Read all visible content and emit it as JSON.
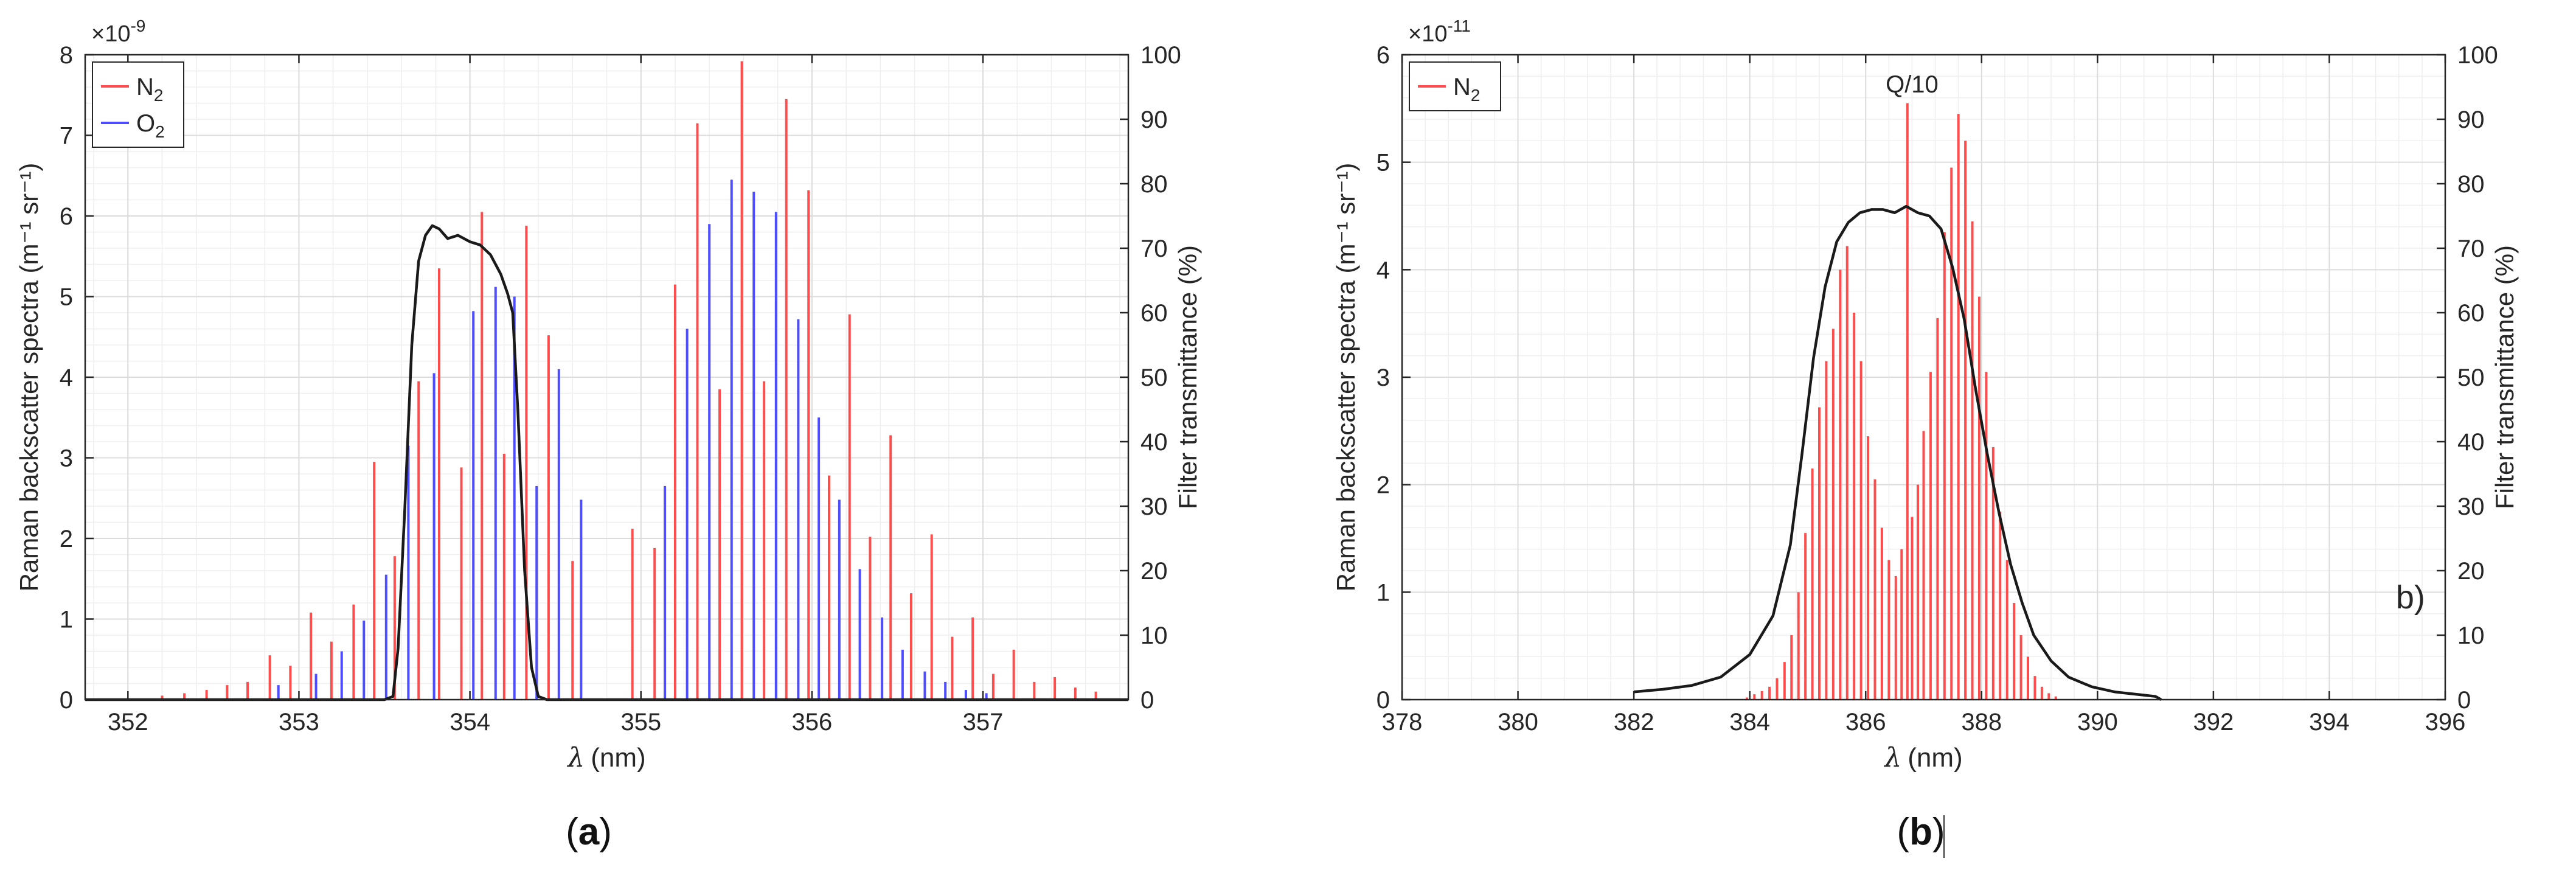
{
  "charts": [
    {
      "panel_caption_prefix": "(",
      "panel_caption_letter": "a",
      "panel_caption_suffix": ")",
      "xlabel_symbol": "λ",
      "xlabel_unit": "(nm)",
      "ylabel": "Raman backscatter spectra (m⁻¹ sr⁻¹)",
      "y2label": "Filter transmittance (%)",
      "exponent_base": "×10",
      "exponent_power": "-9",
      "legend_items": [
        {
          "label_main": "N",
          "label_sub": "2",
          "color": "#ff4d4d"
        },
        {
          "label_main": "O",
          "label_sub": "2",
          "color": "#4d4dff"
        }
      ],
      "xticks": [
        "352",
        "353",
        "354",
        "355",
        "356",
        "357"
      ],
      "yticks": [
        "0",
        "1",
        "2",
        "3",
        "4",
        "5",
        "6",
        "7",
        "8"
      ],
      "y2ticks": [
        "0",
        "10",
        "20",
        "30",
        "40",
        "50",
        "60",
        "70",
        "80",
        "90",
        "100"
      ],
      "annotations": []
    },
    {
      "panel_caption_prefix": "(",
      "panel_caption_letter": "b",
      "panel_caption_suffix": ")",
      "xlabel_symbol": "λ",
      "xlabel_unit": "(nm)",
      "ylabel": "Raman backscatter spectra (m⁻¹ sr⁻¹)",
      "y2label": "Filter transmittance (%)",
      "exponent_base": "×10",
      "exponent_power": "-11",
      "legend_items": [
        {
          "label_main": "N",
          "label_sub": "2",
          "color": "#ff4d4d"
        }
      ],
      "xticks": [
        "378",
        "380",
        "382",
        "384",
        "386",
        "388",
        "390",
        "392",
        "394",
        "396"
      ],
      "yticks": [
        "0",
        "1",
        "2",
        "3",
        "4",
        "5",
        "6"
      ],
      "y2ticks": [
        "0",
        "10",
        "20",
        "30",
        "40",
        "50",
        "60",
        "70",
        "80",
        "90",
        "100"
      ],
      "annotations": [
        {
          "text": "Q/10",
          "x": 386.8,
          "y": 5.65
        },
        {
          "text": "b)",
          "x": 395.4,
          "y": 0.85
        }
      ]
    }
  ],
  "chart_data": [
    {
      "type": "bar",
      "xlim": [
        351.75,
        357.85
      ],
      "ylim": [
        0,
        8
      ],
      "y_scale": 1e-09,
      "y2lim": [
        0,
        100
      ],
      "grid": true,
      "legend_position": "top-left",
      "series": [
        {
          "name": "N2",
          "color": "#ff4d4d",
          "kind": "stems",
          "points": [
            [
              352.2,
              0.05
            ],
            [
              352.33,
              0.08
            ],
            [
              352.46,
              0.12
            ],
            [
              352.58,
              0.18
            ],
            [
              352.7,
              0.22
            ],
            [
              352.83,
              0.55
            ],
            [
              352.95,
              0.42
            ],
            [
              353.07,
              1.08
            ],
            [
              353.19,
              0.72
            ],
            [
              353.32,
              1.18
            ],
            [
              353.44,
              2.95
            ],
            [
              353.56,
              1.78
            ],
            [
              353.7,
              3.95
            ],
            [
              353.82,
              5.35
            ],
            [
              353.95,
              2.88
            ],
            [
              354.07,
              6.05
            ],
            [
              354.2,
              3.05
            ],
            [
              354.33,
              5.88
            ],
            [
              354.46,
              4.52
            ],
            [
              354.6,
              1.72
            ],
            [
              354.95,
              2.12
            ],
            [
              355.08,
              1.88
            ],
            [
              355.2,
              5.15
            ],
            [
              355.33,
              7.15
            ],
            [
              355.46,
              3.85
            ],
            [
              355.59,
              7.92
            ],
            [
              355.72,
              3.95
            ],
            [
              355.85,
              7.45
            ],
            [
              355.98,
              6.32
            ],
            [
              356.1,
              2.78
            ],
            [
              356.22,
              4.78
            ],
            [
              356.34,
              2.02
            ],
            [
              356.46,
              3.28
            ],
            [
              356.58,
              1.32
            ],
            [
              356.7,
              2.05
            ],
            [
              356.82,
              0.78
            ],
            [
              356.94,
              1.02
            ],
            [
              357.06,
              0.32
            ],
            [
              357.18,
              0.62
            ],
            [
              357.3,
              0.22
            ],
            [
              357.42,
              0.28
            ],
            [
              357.54,
              0.15
            ],
            [
              357.66,
              0.1
            ]
          ]
        },
        {
          "name": "O2",
          "color": "#4d4dff",
          "kind": "stems",
          "points": [
            [
              352.88,
              0.18
            ],
            [
              353.1,
              0.32
            ],
            [
              353.25,
              0.6
            ],
            [
              353.38,
              0.98
            ],
            [
              353.51,
              1.55
            ],
            [
              353.64,
              3.15
            ],
            [
              353.79,
              4.05
            ],
            [
              354.02,
              4.82
            ],
            [
              354.15,
              5.12
            ],
            [
              354.26,
              5.0
            ],
            [
              354.39,
              2.65
            ],
            [
              354.52,
              4.1
            ],
            [
              354.65,
              2.48
            ],
            [
              355.14,
              2.65
            ],
            [
              355.27,
              4.6
            ],
            [
              355.4,
              5.9
            ],
            [
              355.53,
              6.45
            ],
            [
              355.66,
              6.3
            ],
            [
              355.79,
              6.05
            ],
            [
              355.92,
              4.72
            ],
            [
              356.04,
              3.5
            ],
            [
              356.16,
              2.48
            ],
            [
              356.28,
              1.62
            ],
            [
              356.41,
              1.02
            ],
            [
              356.53,
              0.62
            ],
            [
              356.66,
              0.35
            ],
            [
              356.78,
              0.22
            ],
            [
              356.9,
              0.12
            ],
            [
              357.02,
              0.08
            ]
          ]
        },
        {
          "name": "",
          "color": "#1a1a1a",
          "kind": "line",
          "axis": "y2",
          "points": [
            [
              351.75,
              0
            ],
            [
              353.5,
              0
            ],
            [
              353.55,
              0.5
            ],
            [
              353.58,
              8
            ],
            [
              353.62,
              30
            ],
            [
              353.66,
              55
            ],
            [
              353.7,
              68
            ],
            [
              353.74,
              72
            ],
            [
              353.78,
              73.5
            ],
            [
              353.82,
              73
            ],
            [
              353.87,
              71.5
            ],
            [
              353.93,
              72
            ],
            [
              354.0,
              71
            ],
            [
              354.06,
              70.5
            ],
            [
              354.12,
              69
            ],
            [
              354.18,
              66
            ],
            [
              354.22,
              63
            ],
            [
              354.25,
              60
            ],
            [
              354.28,
              45
            ],
            [
              354.32,
              20
            ],
            [
              354.36,
              5
            ],
            [
              354.4,
              0.5
            ],
            [
              354.45,
              0
            ],
            [
              357.85,
              0
            ]
          ]
        }
      ]
    },
    {
      "type": "bar",
      "xlim": [
        378,
        396
      ],
      "ylim": [
        0,
        6
      ],
      "y_scale": 1e-11,
      "y2lim": [
        0,
        100
      ],
      "grid": true,
      "legend_position": "top-left",
      "series": [
        {
          "name": "N2",
          "color": "#ff4d4d",
          "kind": "stems",
          "points": [
            [
              383.95,
              0.02
            ],
            [
              384.08,
              0.05
            ],
            [
              384.21,
              0.08
            ],
            [
              384.34,
              0.12
            ],
            [
              384.47,
              0.2
            ],
            [
              384.6,
              0.35
            ],
            [
              384.72,
              0.6
            ],
            [
              384.84,
              1.0
            ],
            [
              384.96,
              1.55
            ],
            [
              385.08,
              2.15
            ],
            [
              385.2,
              2.72
            ],
            [
              385.32,
              3.15
            ],
            [
              385.44,
              3.45
            ],
            [
              385.56,
              4.0
            ],
            [
              385.68,
              4.22
            ],
            [
              385.8,
              3.6
            ],
            [
              385.92,
              3.15
            ],
            [
              386.04,
              2.45
            ],
            [
              386.16,
              2.05
            ],
            [
              386.28,
              1.6
            ],
            [
              386.4,
              1.3
            ],
            [
              386.52,
              1.15
            ],
            [
              386.62,
              1.4
            ],
            [
              386.72,
              5.55
            ],
            [
              386.8,
              1.7
            ],
            [
              386.9,
              2.0
            ],
            [
              387.0,
              2.5
            ],
            [
              387.12,
              3.05
            ],
            [
              387.24,
              3.55
            ],
            [
              387.36,
              4.35
            ],
            [
              387.48,
              4.95
            ],
            [
              387.6,
              5.45
            ],
            [
              387.72,
              5.2
            ],
            [
              387.84,
              4.45
            ],
            [
              387.96,
              3.75
            ],
            [
              388.08,
              3.05
            ],
            [
              388.2,
              2.35
            ],
            [
              388.32,
              1.75
            ],
            [
              388.44,
              1.3
            ],
            [
              388.56,
              0.9
            ],
            [
              388.68,
              0.6
            ],
            [
              388.8,
              0.4
            ],
            [
              388.92,
              0.22
            ],
            [
              389.04,
              0.12
            ],
            [
              389.16,
              0.06
            ],
            [
              389.28,
              0.03
            ]
          ]
        },
        {
          "name": "",
          "color": "#1a1a1a",
          "kind": "line",
          "axis": "y2",
          "points": [
            [
              382.0,
              1.2
            ],
            [
              382.5,
              1.6
            ],
            [
              383.0,
              2.2
            ],
            [
              383.5,
              3.5
            ],
            [
              384.0,
              7.0
            ],
            [
              384.4,
              13
            ],
            [
              384.7,
              24
            ],
            [
              384.9,
              38
            ],
            [
              385.1,
              53
            ],
            [
              385.3,
              64
            ],
            [
              385.5,
              71
            ],
            [
              385.7,
              74
            ],
            [
              385.9,
              75.5
            ],
            [
              386.1,
              76
            ],
            [
              386.3,
              76
            ],
            [
              386.5,
              75.5
            ],
            [
              386.7,
              76.5
            ],
            [
              386.9,
              75.5
            ],
            [
              387.1,
              75
            ],
            [
              387.3,
              73
            ],
            [
              387.5,
              67
            ],
            [
              387.7,
              59
            ],
            [
              387.9,
              48
            ],
            [
              388.1,
              38
            ],
            [
              388.3,
              29
            ],
            [
              388.5,
              21
            ],
            [
              388.7,
              15
            ],
            [
              388.9,
              10
            ],
            [
              389.2,
              6
            ],
            [
              389.5,
              3.5
            ],
            [
              389.9,
              2.0
            ],
            [
              390.3,
              1.2
            ],
            [
              390.7,
              0.8
            ],
            [
              391.0,
              0.5
            ],
            [
              391.1,
              0
            ]
          ]
        }
      ]
    }
  ]
}
